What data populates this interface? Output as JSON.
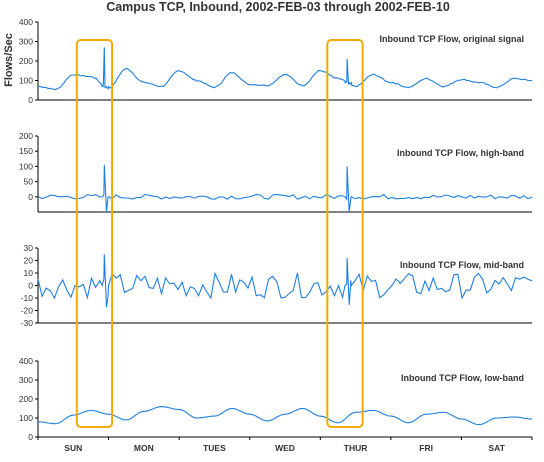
{
  "title": "Campus TCP,  Inbound, 2002-FEB-03 through 2002-FEB-10",
  "ylabel": "Flows/Sec",
  "days": [
    "SUN",
    "MON",
    "TUES",
    "WED",
    "THUR",
    "FRI",
    "SAT"
  ],
  "colors": {
    "line": "#1f7fe0",
    "highlight": "#f5a800",
    "axis": "#000000"
  },
  "chart_data": [
    {
      "type": "line",
      "label": "Inbound TCP Flow, original signal",
      "ylim": [
        0,
        400
      ],
      "yticks": [
        0,
        100,
        200,
        300,
        400
      ],
      "x": [
        0,
        0.25,
        0.5,
        0.75,
        1.0,
        1.25,
        1.5,
        1.75,
        2.0,
        2.25,
        2.5,
        2.75,
        3.0,
        3.25,
        3.5,
        3.75,
        4.0,
        4.25,
        4.5,
        4.75,
        5.0,
        5.25,
        5.5,
        5.75,
        6.0,
        6.25,
        6.5,
        6.75,
        7.0
      ],
      "values": [
        70,
        55,
        130,
        120,
        60,
        160,
        90,
        70,
        150,
        100,
        65,
        140,
        80,
        75,
        130,
        75,
        150,
        110,
        70,
        130,
        90,
        65,
        110,
        70,
        105,
        90,
        65,
        110,
        100
      ],
      "spikes": [
        {
          "x": 0.94,
          "y": 270
        },
        {
          "x": 4.38,
          "y": 210
        }
      ]
    },
    {
      "type": "line",
      "label": "Inbound TCP Flow, high-band",
      "ylim": [
        -50,
        200
      ],
      "yticks": [
        0,
        50,
        100,
        150,
        200
      ],
      "spikes": [
        {
          "x": 0.94,
          "y": 105
        },
        {
          "x": 4.38,
          "y": 100
        }
      ]
    },
    {
      "type": "line",
      "label": "Inbound TCP Flow, mid-band",
      "ylim": [
        -30,
        30
      ],
      "yticks": [
        -30,
        -20,
        -10,
        0,
        10,
        20,
        30
      ],
      "spikes": [
        {
          "x": 0.94,
          "y": 25
        },
        {
          "x": 4.38,
          "y": 22
        }
      ]
    },
    {
      "type": "line",
      "label": "Inbound TCP Flow, low-band",
      "ylim": [
        0,
        400
      ],
      "yticks": [
        0,
        100,
        200,
        300,
        400
      ],
      "x": [
        0,
        0.25,
        0.5,
        0.75,
        1.0,
        1.25,
        1.5,
        1.75,
        2.0,
        2.25,
        2.5,
        2.75,
        3.0,
        3.25,
        3.5,
        3.75,
        4.0,
        4.25,
        4.5,
        4.75,
        5.0,
        5.25,
        5.5,
        5.75,
        6.0,
        6.25,
        6.5,
        6.75,
        7.0
      ],
      "values": [
        80,
        70,
        115,
        140,
        120,
        90,
        135,
        160,
        145,
        100,
        110,
        150,
        120,
        85,
        120,
        150,
        110,
        75,
        130,
        140,
        110,
        75,
        120,
        130,
        95,
        65,
        100,
        105,
        95
      ]
    }
  ]
}
